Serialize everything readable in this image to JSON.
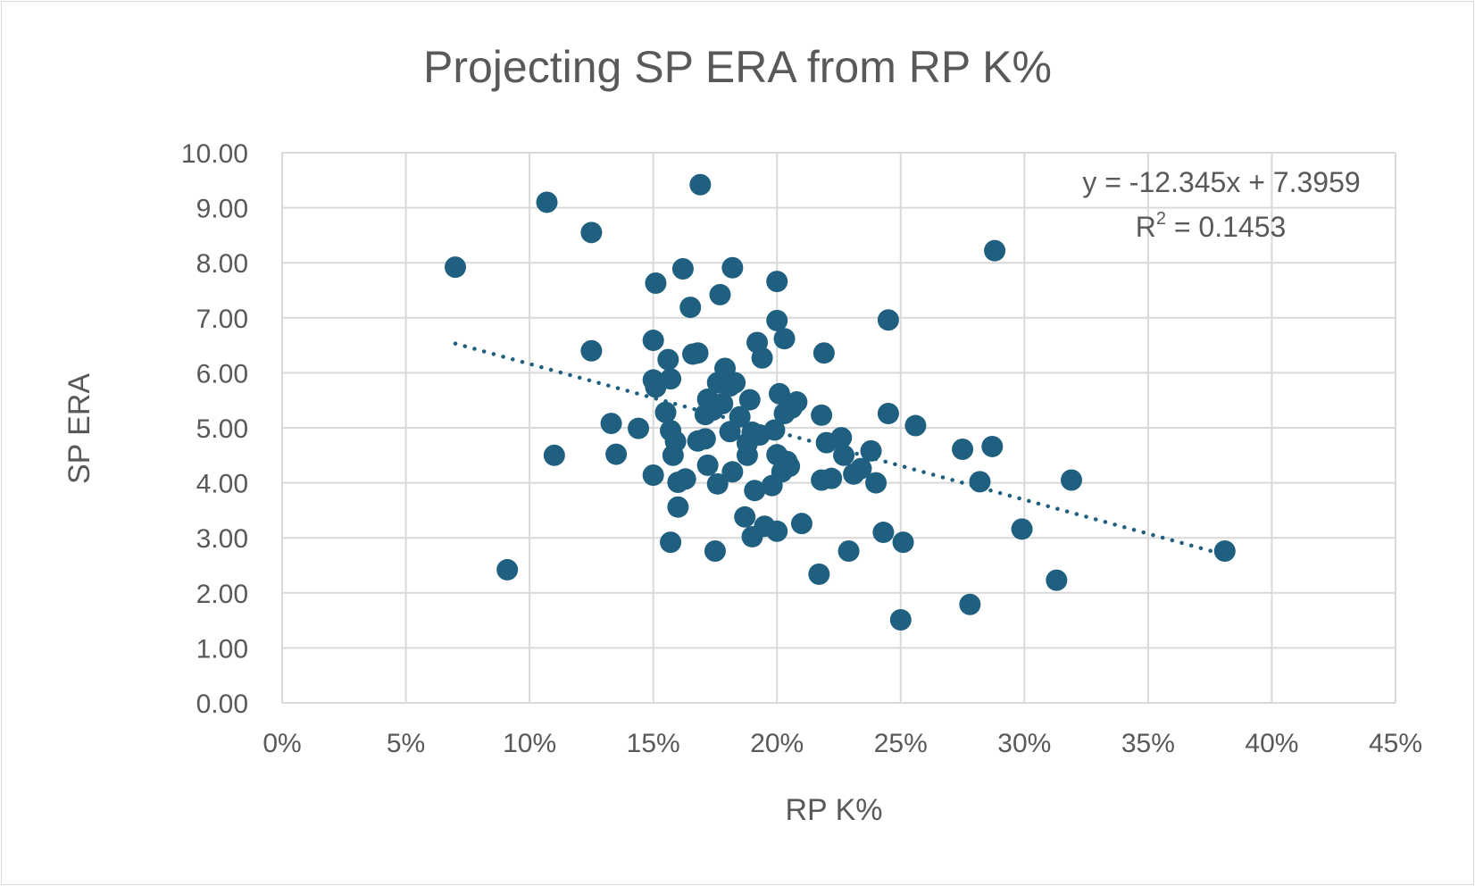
{
  "chart_data": {
    "type": "scatter",
    "title": "Projecting SP ERA from RP K%",
    "xlabel": "RP K%",
    "ylabel": "SP ERA",
    "xlim": [
      0,
      0.45
    ],
    "ylim": [
      0,
      10
    ],
    "x_ticks": [
      0,
      0.05,
      0.1,
      0.15,
      0.2,
      0.25,
      0.3,
      0.35,
      0.4,
      0.45
    ],
    "x_tick_labels": [
      "0%",
      "5%",
      "10%",
      "15%",
      "20%",
      "25%",
      "30%",
      "35%",
      "40%",
      "45%"
    ],
    "y_ticks": [
      0,
      1,
      2,
      3,
      4,
      5,
      6,
      7,
      8,
      9,
      10
    ],
    "y_tick_labels": [
      "0.00",
      "1.00",
      "2.00",
      "3.00",
      "4.00",
      "5.00",
      "6.00",
      "7.00",
      "8.00",
      "9.00",
      "10.00"
    ],
    "grid": true,
    "marker_color": "#1f5f7f",
    "trendline": {
      "type": "linear",
      "slope": -12.345,
      "intercept": 7.3959,
      "x_range": [
        0.07,
        0.381
      ],
      "style": "dotted",
      "equation_label": "y = -12.345x + 7.3959",
      "r2_prefix": "R",
      "r2_exponent": "2",
      "r2_value": " = 0.1453"
    },
    "points": [
      [
        0.07,
        7.92
      ],
      [
        0.091,
        2.42
      ],
      [
        0.107,
        9.1
      ],
      [
        0.11,
        4.5
      ],
      [
        0.125,
        8.55
      ],
      [
        0.125,
        6.4
      ],
      [
        0.133,
        5.08
      ],
      [
        0.135,
        4.52
      ],
      [
        0.144,
        4.99
      ],
      [
        0.15,
        6.59
      ],
      [
        0.151,
        7.63
      ],
      [
        0.15,
        5.87
      ],
      [
        0.151,
        5.74
      ],
      [
        0.15,
        4.14
      ],
      [
        0.155,
        5.28
      ],
      [
        0.156,
        6.24
      ],
      [
        0.157,
        5.89
      ],
      [
        0.157,
        4.95
      ],
      [
        0.158,
        4.5
      ],
      [
        0.159,
        4.75
      ],
      [
        0.16,
        3.56
      ],
      [
        0.157,
        2.92
      ],
      [
        0.16,
        4.01
      ],
      [
        0.162,
        7.89
      ],
      [
        0.163,
        4.07
      ],
      [
        0.165,
        7.19
      ],
      [
        0.166,
        6.34
      ],
      [
        0.168,
        6.36
      ],
      [
        0.168,
        4.76
      ],
      [
        0.169,
        9.42
      ],
      [
        0.171,
        4.8
      ],
      [
        0.171,
        5.24
      ],
      [
        0.172,
        5.52
      ],
      [
        0.172,
        4.32
      ],
      [
        0.174,
        5.32
      ],
      [
        0.175,
        2.76
      ],
      [
        0.176,
        3.98
      ],
      [
        0.176,
        5.82
      ],
      [
        0.177,
        7.42
      ],
      [
        0.178,
        5.44
      ],
      [
        0.179,
        6.08
      ],
      [
        0.181,
        4.93
      ],
      [
        0.181,
        5.76
      ],
      [
        0.182,
        7.91
      ],
      [
        0.182,
        4.2
      ],
      [
        0.183,
        5.82
      ],
      [
        0.185,
        5.2
      ],
      [
        0.187,
        3.38
      ],
      [
        0.188,
        4.5
      ],
      [
        0.188,
        4.72
      ],
      [
        0.189,
        5.51
      ],
      [
        0.19,
        4.92
      ],
      [
        0.19,
        3.02
      ],
      [
        0.191,
        3.86
      ],
      [
        0.192,
        6.55
      ],
      [
        0.193,
        4.87
      ],
      [
        0.194,
        6.27
      ],
      [
        0.195,
        3.21
      ],
      [
        0.198,
        3.95
      ],
      [
        0.199,
        4.96
      ],
      [
        0.2,
        7.66
      ],
      [
        0.2,
        6.95
      ],
      [
        0.2,
        4.51
      ],
      [
        0.2,
        3.12
      ],
      [
        0.201,
        5.62
      ],
      [
        0.202,
        4.2
      ],
      [
        0.203,
        6.62
      ],
      [
        0.203,
        5.26
      ],
      [
        0.204,
        4.39
      ],
      [
        0.205,
        4.3
      ],
      [
        0.206,
        5.36
      ],
      [
        0.208,
        5.47
      ],
      [
        0.21,
        3.26
      ],
      [
        0.217,
        2.34
      ],
      [
        0.218,
        5.23
      ],
      [
        0.218,
        4.05
      ],
      [
        0.219,
        6.36
      ],
      [
        0.22,
        4.73
      ],
      [
        0.222,
        4.08
      ],
      [
        0.226,
        4.82
      ],
      [
        0.227,
        4.5
      ],
      [
        0.229,
        2.76
      ],
      [
        0.231,
        4.16
      ],
      [
        0.234,
        4.26
      ],
      [
        0.238,
        4.58
      ],
      [
        0.24,
        4.0
      ],
      [
        0.243,
        3.1
      ],
      [
        0.245,
        5.26
      ],
      [
        0.245,
        6.96
      ],
      [
        0.25,
        1.51
      ],
      [
        0.251,
        2.92
      ],
      [
        0.256,
        5.04
      ],
      [
        0.275,
        4.61
      ],
      [
        0.278,
        1.79
      ],
      [
        0.282,
        4.02
      ],
      [
        0.287,
        4.66
      ],
      [
        0.288,
        8.22
      ],
      [
        0.299,
        3.16
      ],
      [
        0.313,
        2.23
      ],
      [
        0.319,
        4.05
      ],
      [
        0.381,
        2.76
      ]
    ]
  }
}
